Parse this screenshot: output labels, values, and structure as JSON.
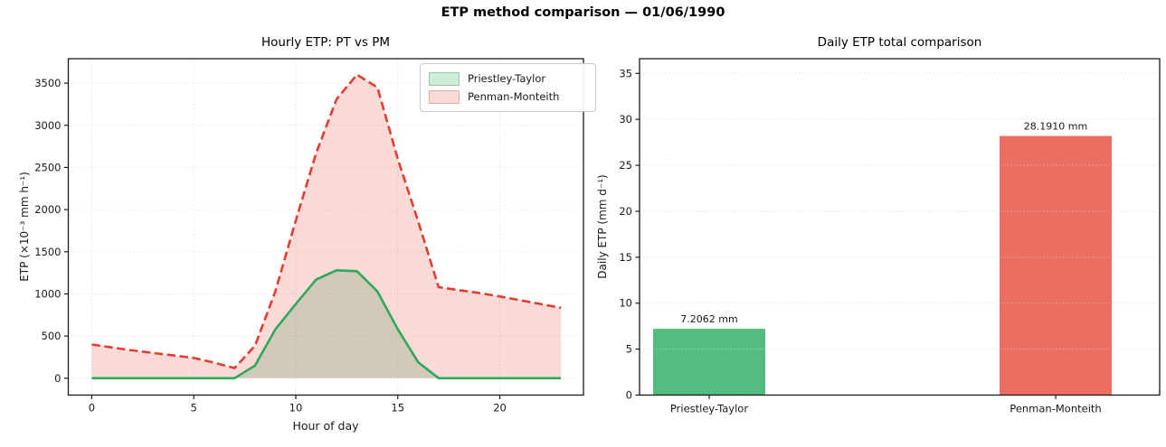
{
  "figure": {
    "title": "ETP method comparison — 01/06/1990"
  },
  "chart_data": [
    {
      "type": "area",
      "title": "Hourly ETP: PT vs PM",
      "xlabel": "Hour of day",
      "ylabel": "ETP (×10⁻³ mm h⁻¹)",
      "x": [
        0,
        1,
        2,
        3,
        4,
        5,
        6,
        7,
        8,
        9,
        10,
        11,
        12,
        13,
        14,
        15,
        16,
        17,
        18,
        19,
        20,
        21,
        22,
        23
      ],
      "series": [
        {
          "name": "Priestley-Taylor",
          "line_style": "solid",
          "line_color": "#2fa85c",
          "fill_color": "rgba(70,180,110,0.26)",
          "values": [
            0,
            0,
            0,
            0,
            0,
            0,
            0,
            0,
            150,
            580,
            880,
            1170,
            1280,
            1270,
            1030,
            580,
            190,
            0,
            0,
            0,
            0,
            0,
            0,
            0
          ]
        },
        {
          "name": "Penman-Monteith",
          "line_style": "dashed",
          "line_color": "#e23e30",
          "fill_color": "rgba(227,70,54,0.20)",
          "values": [
            400,
            365,
            330,
            300,
            270,
            240,
            185,
            120,
            385,
            1030,
            1870,
            2670,
            3310,
            3600,
            3450,
            2600,
            1860,
            1080,
            1045,
            1010,
            970,
            925,
            880,
            835
          ]
        }
      ],
      "xticks": [
        0,
        5,
        10,
        15,
        20
      ],
      "yticks": [
        0,
        500,
        1000,
        1500,
        2000,
        2500,
        3000,
        3500
      ],
      "xlim": [
        -1.15,
        24.1
      ],
      "ylim": [
        -200,
        3790
      ],
      "grid": true,
      "legend_position": "upper right"
    },
    {
      "type": "bar",
      "title": "Daily ETP total comparison",
      "xlabel": "",
      "ylabel": "Daily ETP (mm d⁻¹)",
      "categories": [
        "Priestley-Taylor",
        "Penman-Monteith"
      ],
      "values": [
        7.2062,
        28.191
      ],
      "bar_labels": [
        "7.2062 mm",
        "28.1910 mm"
      ],
      "bar_colors": [
        "#52bd7e",
        "#ec6e61"
      ],
      "yticks": [
        0,
        5,
        10,
        15,
        20,
        25,
        30,
        35
      ],
      "ylim": [
        0,
        36.6
      ],
      "grid": true,
      "legend_position": "none"
    }
  ]
}
